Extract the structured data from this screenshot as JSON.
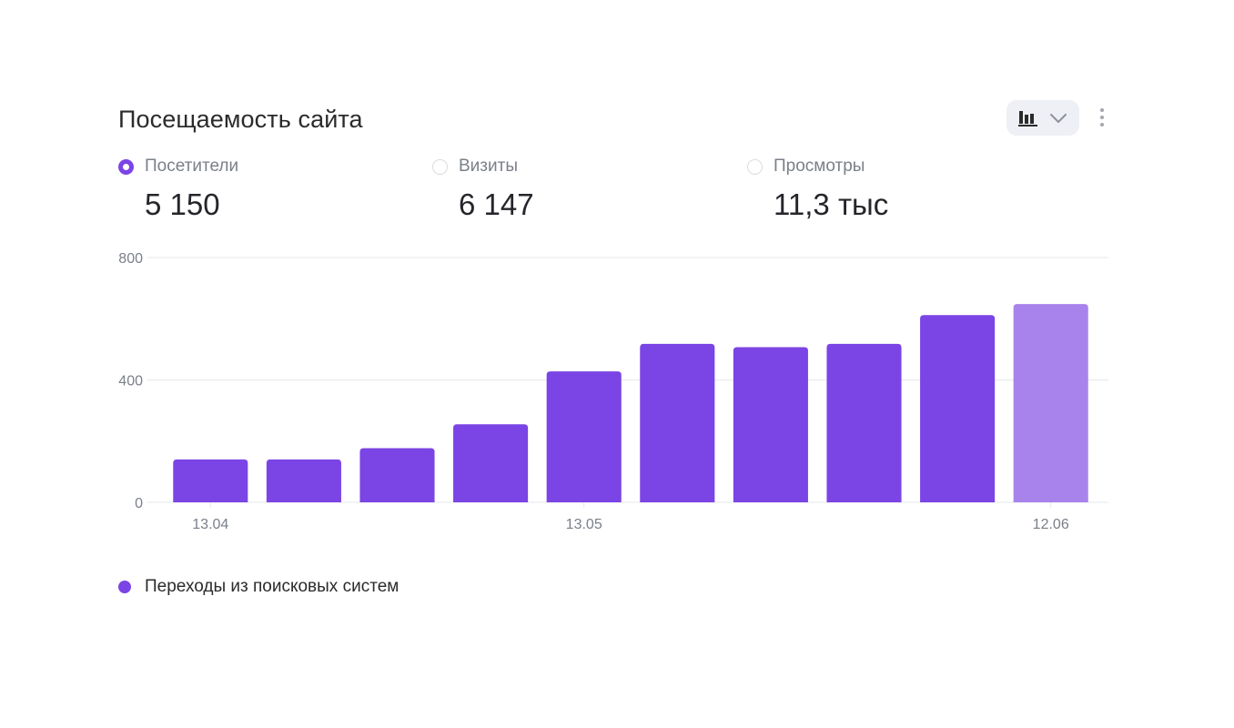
{
  "widget": {
    "title": "Посещаемость сайта",
    "chart_type_toggle_icon": "bar-chart-icon",
    "dropdown_icon": "chevron-down-icon",
    "menu_icon": "more-vertical-icon"
  },
  "metrics": [
    {
      "label": "Посетители",
      "value": "5 150",
      "selected": true
    },
    {
      "label": "Визиты",
      "value": "6 147",
      "selected": false
    },
    {
      "label": "Просмотры",
      "value": "11,3 тыс",
      "selected": false
    }
  ],
  "colors": {
    "accent": "#7b44e5",
    "accent_light": "#a883ec",
    "grid": "#e6e7ea",
    "axis_text": "#7a7f89",
    "toggle_bg": "#eef0f5"
  },
  "chart_data": {
    "type": "bar",
    "categories": [
      "",
      "",
      "",
      "",
      "",
      "",
      "",
      "",
      "",
      ""
    ],
    "x_tick_labels": [
      {
        "index": 0,
        "label": "13.04"
      },
      {
        "index": 4,
        "label": "13.05"
      },
      {
        "index": 9,
        "label": "12.06"
      }
    ],
    "series": [
      {
        "name": "Переходы из поисковых систем",
        "values": [
          140,
          140,
          177,
          255,
          428,
          518,
          507,
          518,
          612,
          648
        ],
        "last_bar_highlighted": true
      }
    ],
    "yticks": [
      0,
      400,
      800
    ],
    "ylim": [
      0,
      800
    ],
    "grid": true,
    "legend_placement": "bottom-left"
  }
}
